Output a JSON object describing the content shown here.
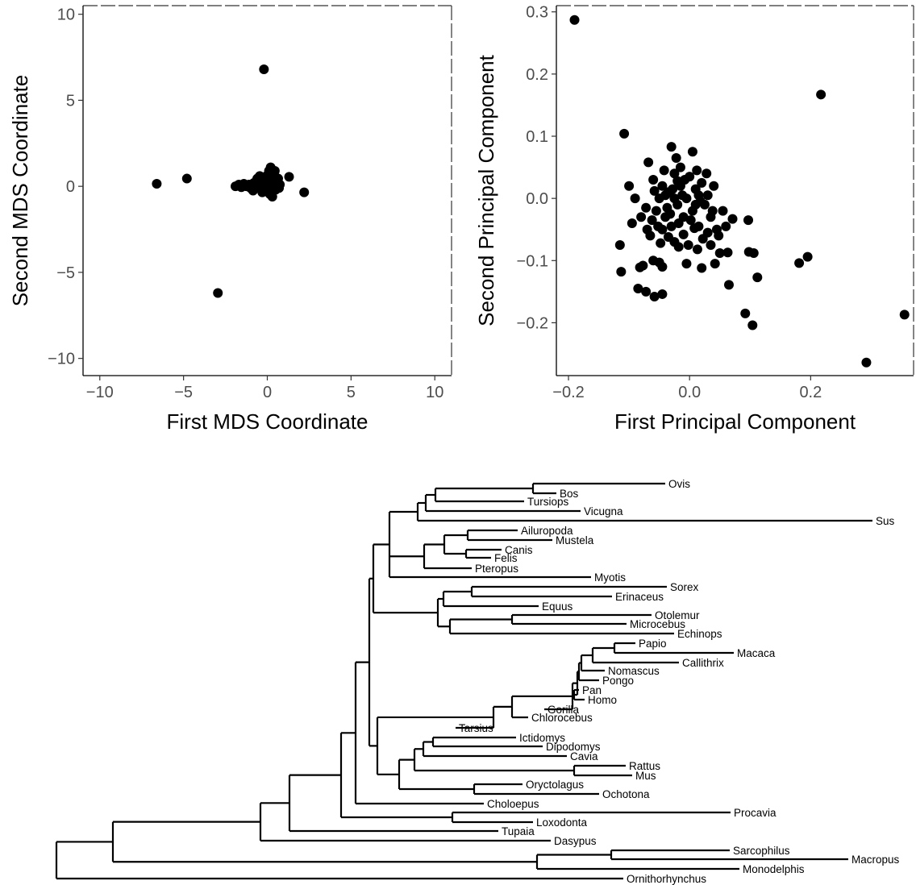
{
  "chart_data": [
    {
      "type": "scatter",
      "title": "",
      "xlabel": "First MDS Coordinate",
      "ylabel": "Second MDS Coordinate",
      "xlim": [
        -11,
        11
      ],
      "ylim": [
        -11,
        10.5
      ],
      "xticks": [
        -10,
        -5,
        0,
        5,
        10
      ],
      "yticks": [
        -10,
        -5,
        0,
        5,
        10
      ],
      "grid": false,
      "points": [
        [
          -6.6,
          0.15
        ],
        [
          -4.8,
          0.45
        ],
        [
          -2.95,
          -6.2
        ],
        [
          -0.2,
          6.8
        ],
        [
          2.2,
          -0.35
        ],
        [
          1.3,
          0.55
        ],
        [
          -1.9,
          0.0
        ],
        [
          -1.7,
          0.1
        ],
        [
          -1.55,
          -0.05
        ],
        [
          -1.4,
          0.15
        ],
        [
          -1.25,
          0.0
        ],
        [
          -1.1,
          0.1
        ],
        [
          -1.0,
          -0.1
        ],
        [
          -0.9,
          0.05
        ],
        [
          -0.8,
          0.2
        ],
        [
          -0.7,
          -0.05
        ],
        [
          -0.6,
          0.15
        ],
        [
          -0.5,
          0.0
        ],
        [
          -0.4,
          0.3
        ],
        [
          -0.35,
          -0.15
        ],
        [
          -0.3,
          0.5
        ],
        [
          -0.25,
          0.1
        ],
        [
          -0.2,
          -0.2
        ],
        [
          -0.15,
          0.35
        ],
        [
          -0.1,
          0.0
        ],
        [
          -0.05,
          0.6
        ],
        [
          0.0,
          -0.3
        ],
        [
          0.05,
          0.2
        ],
        [
          0.1,
          0.9
        ],
        [
          0.15,
          -0.45
        ],
        [
          0.2,
          1.1
        ],
        [
          0.25,
          0.0
        ],
        [
          0.3,
          -0.6
        ],
        [
          0.35,
          0.4
        ],
        [
          0.4,
          0.75
        ],
        [
          0.5,
          -0.2
        ],
        [
          0.55,
          0.15
        ],
        [
          0.65,
          0.45
        ],
        [
          0.7,
          -0.1
        ],
        [
          0.75,
          0.1
        ],
        [
          -0.45,
          0.6
        ],
        [
          -0.6,
          0.45
        ],
        [
          -0.85,
          -0.25
        ],
        [
          0.0,
          0.35
        ],
        [
          0.2,
          0.6
        ],
        [
          -0.3,
          -0.35
        ],
        [
          0.45,
          0.9
        ],
        [
          0.1,
          -0.15
        ]
      ]
    },
    {
      "type": "scatter",
      "title": "",
      "xlabel": "First Principal Component",
      "ylabel": "Second Principal Component",
      "xlim": [
        -0.22,
        0.37
      ],
      "ylim": [
        -0.285,
        0.31
      ],
      "xticks": [
        -0.2,
        0.0,
        0.2
      ],
      "yticks": [
        -0.2,
        -0.1,
        0.0,
        0.1,
        0.2,
        0.3
      ],
      "grid": false,
      "points": [
        [
          -0.19,
          0.287
        ],
        [
          0.217,
          0.167
        ],
        [
          -0.108,
          0.104
        ],
        [
          0.292,
          -0.264
        ],
        [
          0.355,
          -0.187
        ],
        [
          0.104,
          -0.204
        ],
        [
          0.092,
          -0.185
        ],
        [
          0.112,
          -0.127
        ],
        [
          0.181,
          -0.104
        ],
        [
          0.195,
          -0.094
        ],
        [
          0.098,
          -0.086
        ],
        [
          0.106,
          -0.088
        ],
        [
          0.065,
          -0.139
        ],
        [
          0.097,
          -0.035
        ],
        [
          0.063,
          -0.087
        ],
        [
          0.071,
          -0.033
        ],
        [
          0.05,
          -0.088
        ],
        [
          0.042,
          -0.105
        ],
        [
          0.035,
          -0.075
        ],
        [
          0.02,
          -0.112
        ],
        [
          0.013,
          -0.082
        ],
        [
          -0.115,
          -0.075
        ],
        [
          -0.113,
          -0.118
        ],
        [
          -0.085,
          -0.145
        ],
        [
          -0.072,
          -0.15
        ],
        [
          -0.058,
          -0.158
        ],
        [
          -0.045,
          -0.154
        ],
        [
          -0.082,
          -0.111
        ],
        [
          -0.077,
          -0.108
        ],
        [
          -0.06,
          -0.1
        ],
        [
          -0.05,
          -0.103
        ],
        [
          -0.045,
          -0.11
        ],
        [
          -0.005,
          -0.105
        ],
        [
          -0.018,
          -0.078
        ],
        [
          -0.03,
          0.083
        ],
        [
          0.005,
          0.075
        ],
        [
          -0.022,
          0.065
        ],
        [
          -0.068,
          0.058
        ],
        [
          -0.1,
          0.02
        ],
        [
          -0.09,
          0.0
        ],
        [
          -0.095,
          -0.04
        ],
        [
          -0.08,
          -0.03
        ],
        [
          -0.07,
          -0.05
        ],
        [
          -0.06,
          0.03
        ],
        [
          -0.055,
          -0.02
        ],
        [
          -0.05,
          0.0
        ],
        [
          -0.045,
          0.02
        ],
        [
          -0.04,
          -0.03
        ],
        [
          -0.035,
          0.01
        ],
        [
          -0.03,
          -0.045
        ],
        [
          -0.025,
          0.04
        ],
        [
          -0.02,
          -0.01
        ],
        [
          -0.015,
          0.02
        ],
        [
          -0.01,
          -0.03
        ],
        [
          -0.005,
          0.0
        ],
        [
          0.0,
          0.035
        ],
        [
          0.005,
          -0.02
        ],
        [
          0.01,
          0.015
        ],
        [
          0.015,
          -0.045
        ],
        [
          0.02,
          0.025
        ],
        [
          0.025,
          -0.01
        ],
        [
          0.03,
          0.005
        ],
        [
          0.035,
          -0.03
        ],
        [
          0.04,
          0.02
        ],
        [
          -0.065,
          -0.06
        ],
        [
          -0.048,
          -0.072
        ],
        [
          -0.035,
          -0.062
        ],
        [
          -0.025,
          -0.07
        ],
        [
          -0.01,
          -0.058
        ],
        [
          0.008,
          -0.048
        ],
        [
          -0.042,
          0.045
        ],
        [
          -0.015,
          0.05
        ],
        [
          0.012,
          0.045
        ],
        [
          0.028,
          0.04
        ],
        [
          -0.058,
          0.012
        ],
        [
          -0.02,
          0.028
        ],
        [
          -0.037,
          -0.015
        ],
        [
          -0.012,
          0.005
        ],
        [
          0.018,
          -0.005
        ],
        [
          -0.028,
          0.015
        ],
        [
          0.045,
          -0.05
        ],
        [
          0.055,
          -0.02
        ],
        [
          0.048,
          -0.06
        ],
        [
          -0.072,
          -0.015
        ],
        [
          -0.052,
          -0.045
        ],
        [
          -0.002,
          -0.075
        ],
        [
          0.022,
          -0.065
        ],
        [
          -0.032,
          -0.025
        ],
        [
          0.002,
          -0.035
        ],
        [
          -0.018,
          -0.04
        ],
        [
          0.03,
          -0.055
        ],
        [
          0.06,
          -0.045
        ],
        [
          -0.04,
          0.005
        ],
        [
          -0.008,
          0.03
        ],
        [
          0.015,
          0.005
        ],
        [
          -0.062,
          -0.035
        ],
        [
          -0.025,
          0.0
        ],
        [
          0.01,
          -0.01
        ],
        [
          -0.045,
          -0.05
        ],
        [
          0.038,
          -0.02
        ]
      ]
    },
    {
      "type": "tree",
      "title": "",
      "taxa": [
        "Ovis",
        "Bos",
        "Tursiops",
        "Vicugna",
        "Sus",
        "Ailuropoda",
        "Mustela",
        "Canis",
        "Felis",
        "Pteropus",
        "Myotis",
        "Sorex",
        "Erinaceus",
        "Equus",
        "Otolemur",
        "Microcebus",
        "Echinops",
        "Papio",
        "Macaca",
        "Callithrix",
        "Nomascus",
        "Pongo",
        "Pan",
        "Homo",
        "Gorilla",
        "Chlorocebus",
        "Tarsius",
        "Ictidomys",
        "Dipodomys",
        "Cavia",
        "Rattus",
        "Mus",
        "Oryctolagus",
        "Ochotona",
        "Choloepus",
        "Procavia",
        "Loxodonta",
        "Tupaia",
        "Dasypus",
        "Sarcophilus",
        "Macropus",
        "Monodelphis",
        "Ornithorhynchus"
      ]
    }
  ]
}
